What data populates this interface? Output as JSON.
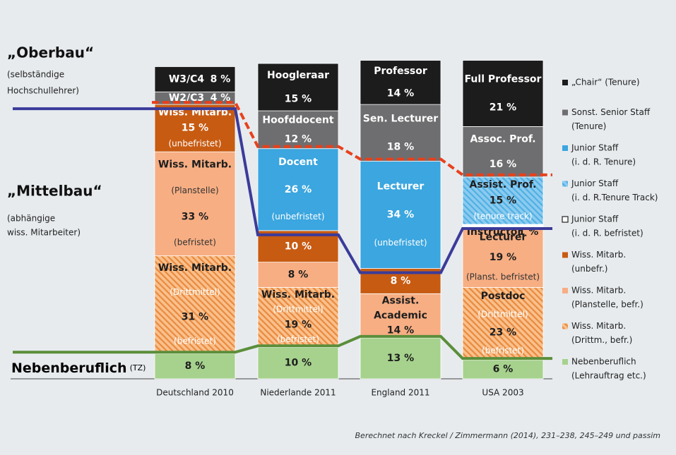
{
  "chart_data": {
    "type": "stacked_bar",
    "headings": {
      "upper": "„Oberbau“",
      "upper_note": [
        "(selbständige",
        "Hochschullehrer)"
      ],
      "middle": "„Mittelbau“",
      "middle_note": [
        "(abhängige",
        "wiss. Mitarbeiter)"
      ],
      "lower": "Nebenberuflich",
      "lower_note": "(TZ)"
    },
    "source": "Berechnet nach Kreckel / Zimmermann (2014), 231–238, 245–249 und passim",
    "legend": [
      {
        "text": [
          "„Chair“ (Tenure)"
        ],
        "color": "#1c1c1c"
      },
      {
        "text": [
          "Sonst. Senior Staff",
          "(Tenure)"
        ],
        "color": "#6e6e70"
      },
      {
        "text": [
          "Junior Staff",
          "(i. d. R. Tenure)"
        ],
        "color": "#3ba6df"
      },
      {
        "text": [
          "Junior Staff",
          "(i. d. R.Tenure Track)"
        ],
        "color": "#8ccbef",
        "hatch": "#4fb0e4"
      },
      {
        "text": [
          "Junior Staff",
          "(i. d. R. befristet)"
        ],
        "color": "#ffffff"
      },
      {
        "text": [
          "Wiss. Mitarb.",
          "(unbefr.)"
        ],
        "color": "#c75b12"
      },
      {
        "text": [
          "Wiss. Mitarb.",
          "(Planstelle, befr.)"
        ],
        "color": "#f7ae83"
      },
      {
        "text": [
          "Wiss. Mitarb.",
          "(Drittm., befr.)"
        ],
        "color": "#f9c08c",
        "hatch": "#e98a3e"
      },
      {
        "text": [
          "Nebenberuflich",
          "(Lehrauftrag etc.)"
        ],
        "color": "#a6d28d"
      }
    ],
    "lines": {
      "tiers": [
        "#3b3b9a",
        "#e8401c",
        "#5b8e3a"
      ]
    },
    "categories": [
      "Deutschland 2010",
      "Niederlande 2011",
      "England 2011",
      "USA 2003"
    ],
    "columns": [
      [
        {
          "value": 8,
          "value_label": "8 %",
          "color": "#a6d28d"
        },
        {
          "label": [
            "Wiss. Mitarb."
          ],
          "note_above": "(Drittmittel)",
          "value": 31,
          "value_label": "31 %",
          "note": "(befristet)",
          "color": "#f9c08c",
          "hatch": "#e98a3e"
        },
        {
          "label": [
            "Wiss. Mitarb."
          ],
          "note_above": "(Planstelle)",
          "value": 33,
          "value_label": "33 %",
          "note": "(befristet)",
          "color": "#f7ae83"
        },
        {
          "label": [
            "Wiss. Mitarb."
          ],
          "value": 15,
          "value_label": "15 %",
          "note": "(unbefristet)",
          "color": "#c75b12"
        },
        {
          "label": [
            "W2/C3"
          ],
          "value": 4,
          "value_label": "4 %",
          "color": "#6e6e70"
        },
        {
          "label": [
            "W3/C4"
          ],
          "value": 8,
          "value_label": "8 %",
          "color": "#1c1c1c"
        }
      ],
      [
        {
          "value": 10,
          "value_label": "10 %",
          "color": "#a6d28d"
        },
        {
          "label": [
            "Wiss. Mitarb."
          ],
          "note_above": "(Drittmittel)",
          "value": 19,
          "value_label": "19 %",
          "note": "(befristet)",
          "color": "#f9c08c",
          "hatch": "#e98a3e"
        },
        {
          "value": 8,
          "value_label": "8 %",
          "color": "#f7ae83"
        },
        {
          "value": 10,
          "value_label": "10 %",
          "color": "#c75b12"
        },
        {
          "label": [
            "Docent"
          ],
          "value": 26,
          "value_label": "26 %",
          "note": "(unbefristet)",
          "color": "#3ba6df"
        },
        {
          "label": [
            "Hoofddocent"
          ],
          "value": 12,
          "value_label": "12 %",
          "color": "#6e6e70"
        },
        {
          "label": [
            "Hoogleraar"
          ],
          "value": 15,
          "value_label": "15 %",
          "color": "#1c1c1c"
        }
      ],
      [
        {
          "value": 13,
          "value_label": "13 %",
          "color": "#a6d28d"
        },
        {
          "label": [
            "Assist.",
            "Academic"
          ],
          "value": 14,
          "value_label": "14 %",
          "color": "#f7ae83"
        },
        {
          "value": 8,
          "value_label": "8 %",
          "color": "#c75b12"
        },
        {
          "label": [
            "Lecturer"
          ],
          "value": 34,
          "value_label": "34 %",
          "note": "(unbefristet)",
          "color": "#3ba6df"
        },
        {
          "label": [
            "Sen. Lecturer"
          ],
          "value": 18,
          "value_label": "18 %",
          "color": "#6e6e70"
        },
        {
          "label": [
            "Professor"
          ],
          "value": 14,
          "value_label": "14 %",
          "color": "#1c1c1c"
        }
      ],
      [
        {
          "value": 6,
          "value_label": "6 %",
          "color": "#a6d28d"
        },
        {
          "label": [
            "Postdoc"
          ],
          "note_above": "(Drittmittel)",
          "value": 23,
          "value_label": "23 %",
          "note": "(befristet)",
          "color": "#f9c08c",
          "hatch": "#e98a3e"
        },
        {
          "label": [
            "Lecturer"
          ],
          "value": 19,
          "value_label": "19 %",
          "note": "(Planst. befristet)",
          "color": "#f7ae83"
        },
        {
          "label": [
            "Instructor"
          ],
          "value": 1,
          "value_label": "1 %",
          "color": "#ffffff"
        },
        {
          "label": [
            "Assist. Prof."
          ],
          "value": 15,
          "value_label": "15 %",
          "note": "(tenure track)",
          "color": "#8ccbef",
          "hatch": "#4fb0e4"
        },
        {
          "label": [
            "Assoc. Prof."
          ],
          "value": 16,
          "value_label": "16 %",
          "color": "#6e6e70"
        },
        {
          "label": [
            "Full Professor"
          ],
          "value": 21,
          "value_label": "21 %",
          "color": "#1c1c1c"
        }
      ]
    ]
  }
}
